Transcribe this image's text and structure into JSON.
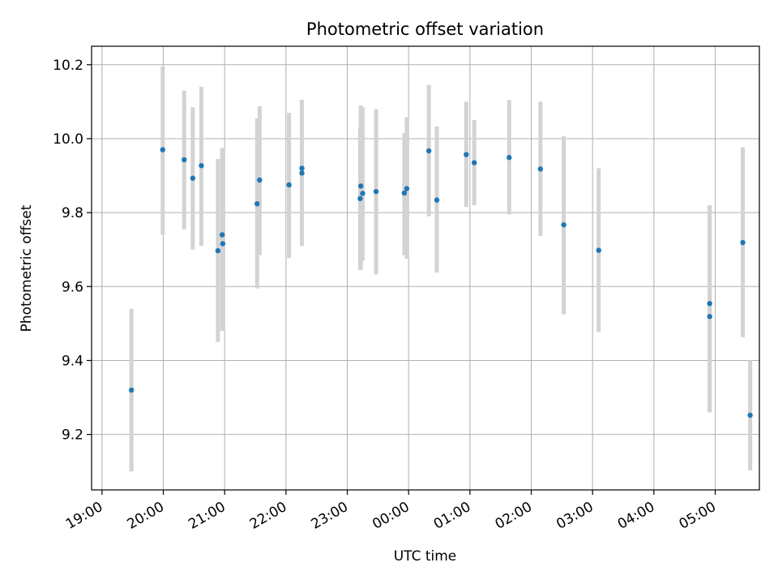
{
  "chart_data": {
    "type": "scatter",
    "title": "Photometric offset variation",
    "xlabel": "UTC time",
    "ylabel": "Photometric offset",
    "x_unit": "hours (UTC, continuing past midnight)",
    "xlim": [
      18.83,
      29.72
    ],
    "ylim": [
      9.05,
      10.25
    ],
    "grid": true,
    "x_ticks": [
      {
        "x": 19,
        "label": "19:00"
      },
      {
        "x": 20,
        "label": "20:00"
      },
      {
        "x": 21,
        "label": "21:00"
      },
      {
        "x": 22,
        "label": "22:00"
      },
      {
        "x": 23,
        "label": "23:00"
      },
      {
        "x": 24,
        "label": "00:00"
      },
      {
        "x": 25,
        "label": "01:00"
      },
      {
        "x": 26,
        "label": "02:00"
      },
      {
        "x": 27,
        "label": "03:00"
      },
      {
        "x": 28,
        "label": "04:00"
      },
      {
        "x": 29,
        "label": "05:00"
      }
    ],
    "y_ticks": [
      {
        "y": 9.2,
        "label": "9.2"
      },
      {
        "y": 9.4,
        "label": "9.4"
      },
      {
        "y": 9.6,
        "label": "9.6"
      },
      {
        "y": 9.8,
        "label": "9.8"
      },
      {
        "y": 10.0,
        "label": "10.0"
      },
      {
        "y": 10.2,
        "label": "10.2"
      }
    ],
    "colors": {
      "point": "#1f77b4",
      "errorbar": "#d3d3d3",
      "grid": "#b0b0b0"
    },
    "points": [
      {
        "x": 19.48,
        "y": 9.32,
        "lo": 9.1,
        "hi": 9.54
      },
      {
        "x": 19.99,
        "y": 9.97,
        "lo": 9.74,
        "hi": 10.195
      },
      {
        "x": 20.34,
        "y": 9.943,
        "lo": 9.755,
        "hi": 10.13
      },
      {
        "x": 20.48,
        "y": 9.893,
        "lo": 9.7,
        "hi": 10.085
      },
      {
        "x": 20.62,
        "y": 9.927,
        "lo": 9.71,
        "hi": 10.14
      },
      {
        "x": 20.89,
        "y": 9.697,
        "lo": 9.45,
        "hi": 9.945
      },
      {
        "x": 20.96,
        "y": 9.74,
        "lo": 9.48,
        "hi": 9.975
      },
      {
        "x": 20.97,
        "y": 9.716,
        "lo": 9.48,
        "hi": 9.975
      },
      {
        "x": 21.53,
        "y": 9.824,
        "lo": 9.595,
        "hi": 10.055
      },
      {
        "x": 21.57,
        "y": 9.888,
        "lo": 9.685,
        "hi": 10.088
      },
      {
        "x": 22.05,
        "y": 9.875,
        "lo": 9.677,
        "hi": 10.07
      },
      {
        "x": 22.26,
        "y": 9.907,
        "lo": 9.71,
        "hi": 10.105
      },
      {
        "x": 22.26,
        "y": 9.92,
        "lo": 9.71,
        "hi": 10.105
      },
      {
        "x": 23.22,
        "y": 9.872,
        "lo": 9.645,
        "hi": 10.09
      },
      {
        "x": 23.21,
        "y": 9.838,
        "lo": 9.645,
        "hi": 10.03
      },
      {
        "x": 23.25,
        "y": 9.852,
        "lo": 9.67,
        "hi": 10.085
      },
      {
        "x": 23.47,
        "y": 9.857,
        "lo": 9.633,
        "hi": 10.08
      },
      {
        "x": 23.93,
        "y": 9.853,
        "lo": 9.685,
        "hi": 10.015
      },
      {
        "x": 23.97,
        "y": 9.865,
        "lo": 9.675,
        "hi": 10.058
      },
      {
        "x": 24.33,
        "y": 9.967,
        "lo": 9.79,
        "hi": 10.145
      },
      {
        "x": 24.46,
        "y": 9.834,
        "lo": 9.638,
        "hi": 10.033
      },
      {
        "x": 24.94,
        "y": 9.957,
        "lo": 9.815,
        "hi": 10.1
      },
      {
        "x": 25.07,
        "y": 9.935,
        "lo": 9.82,
        "hi": 10.05
      },
      {
        "x": 25.64,
        "y": 9.949,
        "lo": 9.795,
        "hi": 10.105
      },
      {
        "x": 26.15,
        "y": 9.918,
        "lo": 9.737,
        "hi": 10.1
      },
      {
        "x": 26.53,
        "y": 9.767,
        "lo": 9.525,
        "hi": 10.007
      },
      {
        "x": 27.1,
        "y": 9.698,
        "lo": 9.477,
        "hi": 9.92
      },
      {
        "x": 28.91,
        "y": 9.554,
        "lo": 9.26,
        "hi": 9.82
      },
      {
        "x": 28.91,
        "y": 9.519,
        "lo": 9.26,
        "hi": 9.82
      },
      {
        "x": 29.45,
        "y": 9.719,
        "lo": 9.463,
        "hi": 9.977
      },
      {
        "x": 29.57,
        "y": 9.252,
        "lo": 9.103,
        "hi": 9.4
      }
    ]
  }
}
